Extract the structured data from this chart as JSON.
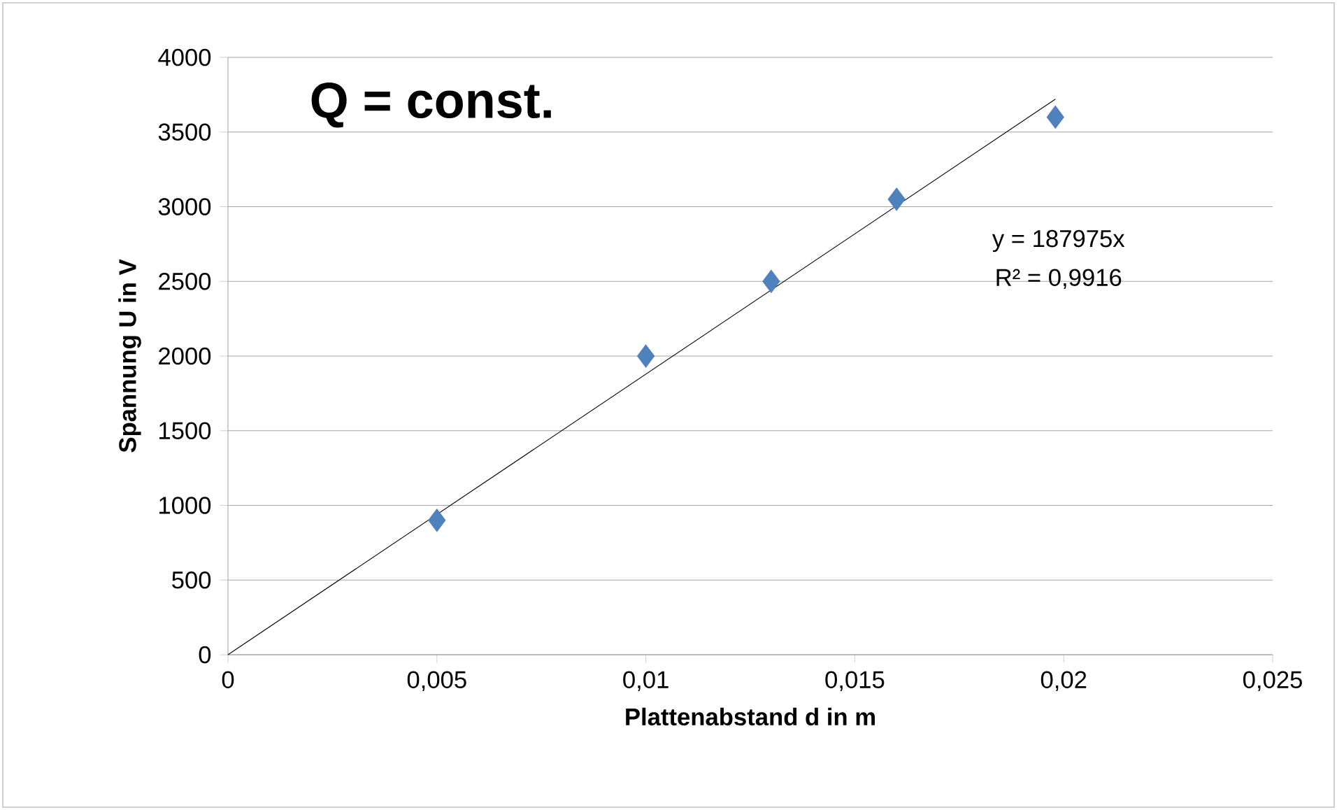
{
  "chart_data": {
    "type": "scatter",
    "xlabel": "Plattenabstand d in m",
    "ylabel": "Spannung U in V",
    "annotations": [
      "Q = const.",
      "y = 187975x",
      "R² = 0,9916"
    ],
    "series": [
      {
        "color": "#4f81bd",
        "x": [
          0.005,
          0.01,
          0.013,
          0.016,
          0.0198
        ],
        "values": [
          900,
          2000,
          2500,
          3050,
          3600
        ]
      },
      {
        "type": "line",
        "color": "#000000",
        "marker": "none",
        "x": [
          0,
          0.0198
        ],
        "values": [
          0,
          3720
        ]
      }
    ],
    "xlim": [
      0,
      0.025
    ],
    "ylim": [
      0,
      4000
    ],
    "xticks": [
      0,
      {
        "value": 0.005,
        "label": "0,005"
      },
      {
        "value": 0.01,
        "label": "0,01"
      },
      {
        "value": 0.015,
        "label": "0,015"
      },
      {
        "value": 0.02,
        "label": "0,02"
      },
      {
        "value": 0.025,
        "label": "0,025"
      }
    ],
    "yticks": [
      0,
      500,
      1000,
      1500,
      2000,
      2500,
      3000,
      3500,
      4000
    ],
    "grid": "y",
    "marker": "diamond"
  }
}
